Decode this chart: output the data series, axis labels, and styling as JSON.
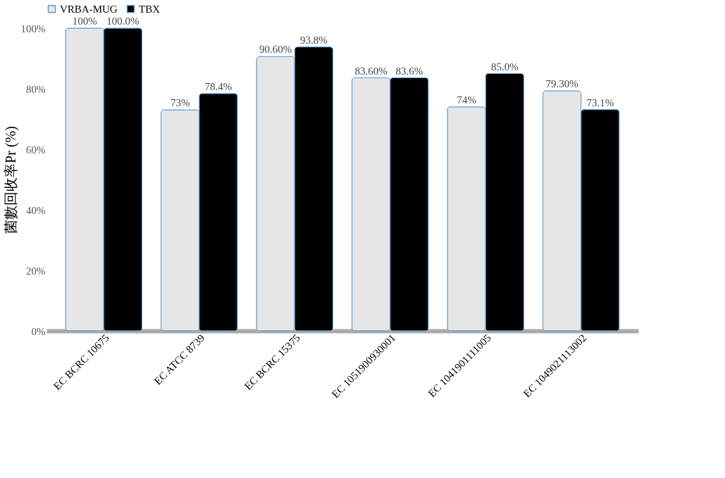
{
  "chart_data": {
    "type": "bar",
    "ylabel": "菌數回收率Pr (%)",
    "categories": [
      "EC BCRC 10675",
      "EC ATCC 8739",
      "EC BCRC 15375",
      "EC 1051900930001",
      "EC 1041901111005",
      "EC 1049021113002"
    ],
    "series": [
      {
        "name": "VRBA-MUG",
        "color": "#e6e6e6",
        "values": [
          100,
          73,
          90.6,
          83.6,
          74,
          79.3
        ],
        "value_labels": [
          "100%",
          "73%",
          "90.60%",
          "83.60%",
          "74%",
          "79.30%"
        ]
      },
      {
        "name": "TBX",
        "color": "#000000",
        "values": [
          100,
          78.4,
          93.8,
          83.6,
          85.0,
          73.1
        ],
        "value_labels": [
          "100.0%",
          "78.4%",
          "93.8%",
          "83.6%",
          "85.0%",
          "73.1%"
        ]
      }
    ],
    "ylim": [
      0,
      100
    ],
    "yticks": [
      {
        "value": 0,
        "label": "0%"
      },
      {
        "value": 20,
        "label": "20%"
      },
      {
        "value": 40,
        "label": "40%"
      },
      {
        "value": 60,
        "label": "60%"
      },
      {
        "value": 80,
        "label": "80%"
      },
      {
        "value": 100,
        "label": "100%"
      }
    ],
    "grid": false,
    "legend": "top"
  }
}
